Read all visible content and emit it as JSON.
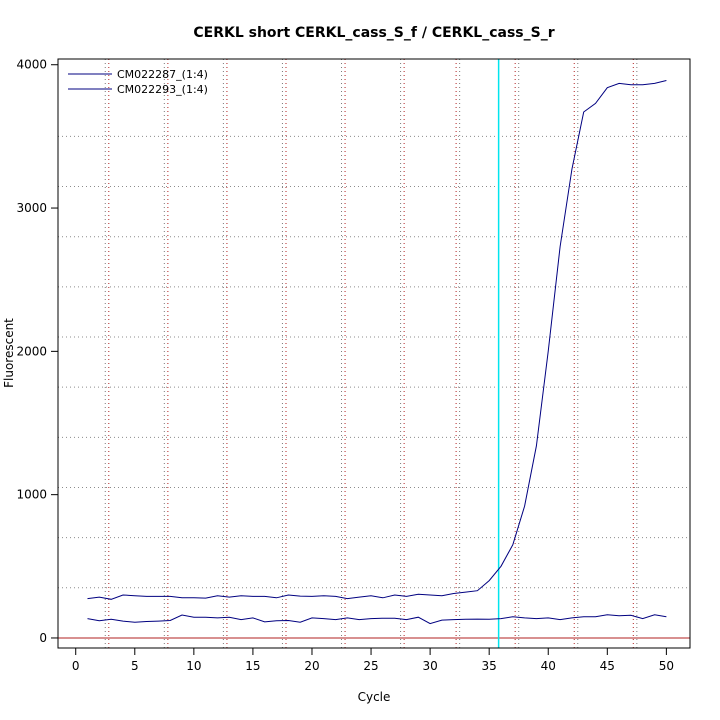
{
  "chart_data": {
    "type": "line",
    "title": "CERKL short CERKL_cass_S_f / CERKL_cass_S_r",
    "xlabel": "Cycle",
    "ylabel": "Fluorescent",
    "xlim": [
      -1.5,
      52
    ],
    "ylim": [
      -70,
      4040
    ],
    "x_ticks": [
      0,
      5,
      10,
      15,
      20,
      25,
      30,
      35,
      40,
      45,
      50
    ],
    "y_ticks": [
      0,
      1000,
      2000,
      3000,
      4000
    ],
    "grid": true,
    "grid_v_dotted_grey": [
      2.5,
      7.5,
      12.5,
      17.5,
      22.5,
      27.5,
      32.5,
      37.5,
      42.5,
      47.5
    ],
    "grid_v_dotted_red": [
      2.8,
      7.8,
      12.8,
      17.8,
      22.8,
      27.8,
      32.2,
      37.2,
      42.2,
      47.2
    ],
    "grid_h_dotted": [
      350,
      700,
      1050,
      1400,
      1750,
      2100,
      2450,
      2800,
      3150,
      3500
    ],
    "threshold_cycle": 35.8,
    "threshold_color": "#00e5ee",
    "baseline_value": 0,
    "baseline_color": "#b22222",
    "line_color": "#000080",
    "legend_position": "top-left",
    "x": [
      1,
      2,
      3,
      4,
      5,
      6,
      7,
      8,
      9,
      10,
      11,
      12,
      13,
      14,
      15,
      16,
      17,
      18,
      19,
      20,
      21,
      22,
      23,
      24,
      25,
      26,
      27,
      28,
      29,
      30,
      31,
      32,
      33,
      34,
      35,
      36,
      37,
      38,
      39,
      40,
      41,
      42,
      43,
      44,
      45,
      46,
      47,
      48,
      49,
      50
    ],
    "series": [
      {
        "name": "CM022287_(1:4)",
        "values": [
          275,
          285,
          270,
          300,
          295,
          290,
          290,
          290,
          280,
          280,
          278,
          295,
          285,
          295,
          290,
          290,
          280,
          300,
          292,
          290,
          295,
          290,
          275,
          285,
          295,
          280,
          300,
          290,
          305,
          300,
          295,
          310,
          320,
          330,
          400,
          500,
          650,
          920,
          1340,
          2000,
          2730,
          3270,
          3670,
          3730,
          3840,
          3870,
          3860,
          3860,
          3870,
          3890
        ]
      },
      {
        "name": "CM022293_(1:4)",
        "values": [
          135,
          120,
          130,
          118,
          110,
          115,
          118,
          122,
          160,
          145,
          145,
          140,
          145,
          128,
          140,
          112,
          120,
          122,
          110,
          140,
          135,
          128,
          140,
          128,
          135,
          138,
          138,
          128,
          145,
          100,
          125,
          128,
          130,
          132,
          130,
          135,
          148,
          140,
          135,
          140,
          128,
          140,
          148,
          148,
          162,
          155,
          158,
          135,
          162,
          148
        ]
      }
    ]
  }
}
